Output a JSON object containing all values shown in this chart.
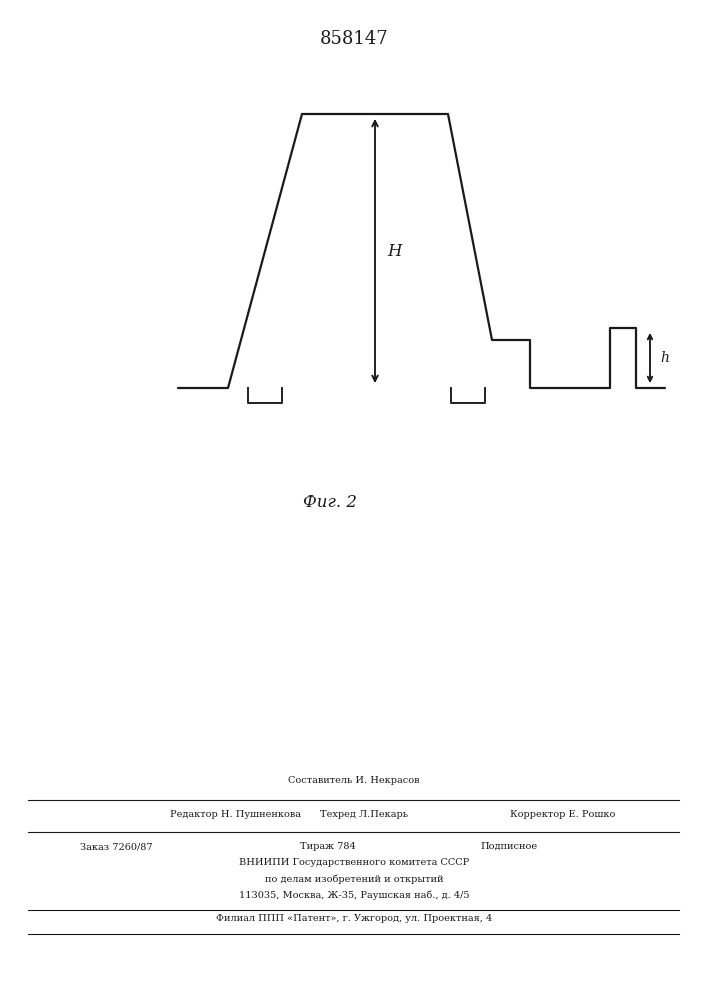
{
  "patent_number": "858147",
  "fig_label_cyrillic": "Фиг. 2",
  "background_color": "#ffffff",
  "line_color": "#1a1a1a",
  "line_width": 1.6,
  "H_label": "H",
  "h_label": "h",
  "footer_line0": "Составитель И. Некрасов",
  "footer_line1_left": "Редактор Н. Пушненкова",
  "footer_line1_mid": "Техред Л.Пекарь",
  "footer_line1_right": "Корректор Е. Рошко",
  "footer_line2_left": "Заказ 7260/87",
  "footer_line2_mid": "Тираж 784",
  "footer_line2_right": "Подписное",
  "footer_line3": "ВНИИПИ Государственного комитета СССР",
  "footer_line4": "по делам изобретений и открытий",
  "footer_line5": "113035, Москва, Ж-35, Раушская наб., д. 4/5",
  "footer_line6": "Филиал ППП «Патент», г. Ужгород, ул. Проектная, 4"
}
